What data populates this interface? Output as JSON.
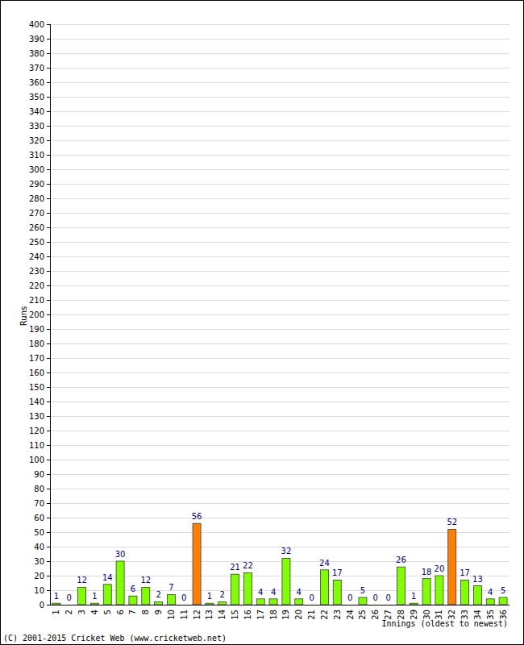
{
  "chart_data": {
    "type": "bar",
    "categories": [
      "1",
      "2",
      "3",
      "4",
      "5",
      "6",
      "7",
      "8",
      "9",
      "10",
      "11",
      "12",
      "13",
      "14",
      "15",
      "16",
      "17",
      "18",
      "19",
      "20",
      "21",
      "22",
      "23",
      "24",
      "25",
      "26",
      "27",
      "28",
      "29",
      "30",
      "31",
      "32",
      "33",
      "34",
      "35",
      "36"
    ],
    "values": [
      1,
      0,
      12,
      1,
      14,
      30,
      6,
      12,
      2,
      7,
      0,
      56,
      1,
      2,
      21,
      22,
      4,
      4,
      32,
      4,
      0,
      24,
      17,
      0,
      5,
      0,
      0,
      26,
      1,
      18,
      20,
      52,
      17,
      13,
      4,
      5
    ],
    "colors": [
      "#80ff00",
      "#80ff00",
      "#80ff00",
      "#80ff00",
      "#80ff00",
      "#80ff00",
      "#80ff00",
      "#80ff00",
      "#80ff00",
      "#80ff00",
      "#80ff00",
      "#ff8000",
      "#80ff00",
      "#80ff00",
      "#80ff00",
      "#80ff00",
      "#80ff00",
      "#80ff00",
      "#80ff00",
      "#80ff00",
      "#80ff00",
      "#80ff00",
      "#80ff00",
      "#80ff00",
      "#80ff00",
      "#80ff00",
      "#80ff00",
      "#80ff00",
      "#80ff00",
      "#80ff00",
      "#80ff00",
      "#ff8000",
      "#80ff00",
      "#80ff00",
      "#80ff00",
      "#80ff00"
    ],
    "ylim": [
      0,
      400
    ],
    "yticks": [
      0,
      10,
      20,
      30,
      40,
      50,
      60,
      70,
      80,
      90,
      100,
      110,
      120,
      130,
      140,
      150,
      160,
      170,
      180,
      190,
      200,
      210,
      220,
      230,
      240,
      250,
      260,
      270,
      280,
      290,
      300,
      310,
      320,
      330,
      340,
      350,
      360,
      370,
      380,
      390,
      400
    ],
    "grid": true,
    "data_labels": true,
    "y_label": "Runs",
    "x_label": "Innings (oldest to newest)",
    "annotations": [
      "(C) 2001-2015 Cricket Web (www.cricketweb.net)"
    ]
  }
}
